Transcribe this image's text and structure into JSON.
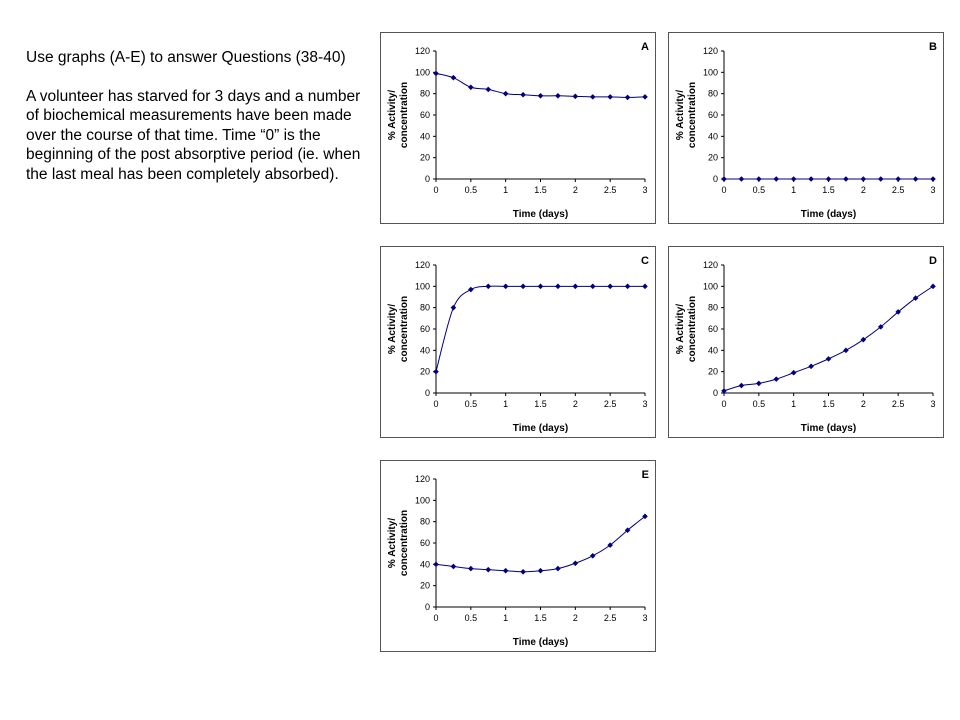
{
  "intro": {
    "heading": "Use graphs (A-E) to answer Questions (38-40)",
    "body": "A volunteer has starved for 3 days and a number of biochemical measurements have been made over the course of that time. Time “0” is the beginning of the post absorptive period (ie. when the last meal has been completely absorbed)."
  },
  "chart_data": [
    {
      "type": "line",
      "title": "A",
      "xlabel": "Time (days)",
      "ylabel": [
        "% Activity/",
        "concentration"
      ],
      "xlim": [
        0,
        3
      ],
      "ylim": [
        0,
        120
      ],
      "xticks": [
        "0",
        "0.5",
        "1",
        "1.5",
        "2",
        "2.5",
        "3"
      ],
      "yticks": [
        "0",
        "20",
        "40",
        "60",
        "80",
        "100",
        "120"
      ],
      "grid": false,
      "color": "#000080",
      "x": [
        0,
        0.25,
        0.5,
        0.75,
        1,
        1.25,
        1.5,
        1.75,
        2,
        2.25,
        2.5,
        2.75,
        3
      ],
      "y": [
        99,
        95,
        86,
        84,
        80,
        79,
        78,
        78,
        77.5,
        77,
        77,
        76.5,
        77
      ]
    },
    {
      "type": "line",
      "title": "B",
      "xlabel": "Time (days)",
      "ylabel": [
        "% Activity/",
        "concentration"
      ],
      "xlim": [
        0,
        3
      ],
      "ylim": [
        0,
        120
      ],
      "xticks": [
        "0",
        "0.5",
        "1",
        "1.5",
        "2",
        "2.5",
        "3"
      ],
      "yticks": [
        "0",
        "20",
        "40",
        "60",
        "80",
        "100",
        "120"
      ],
      "grid": false,
      "color": "#000080",
      "x": [
        0,
        0.25,
        0.5,
        0.75,
        1,
        1.25,
        1.5,
        1.75,
        2,
        2.25,
        2.5,
        2.75,
        3
      ],
      "y": [
        0,
        0,
        0,
        0,
        0,
        0,
        0,
        0,
        0,
        0,
        0,
        0,
        0
      ]
    },
    {
      "type": "line",
      "title": "C",
      "xlabel": "Time (days)",
      "ylabel": [
        "% Activity/",
        "concentration"
      ],
      "xlim": [
        0,
        3
      ],
      "ylim": [
        0,
        120
      ],
      "xticks": [
        "0",
        "0.5",
        "1",
        "1.5",
        "2",
        "2.5",
        "3"
      ],
      "yticks": [
        "0",
        "20",
        "40",
        "60",
        "80",
        "100",
        "120"
      ],
      "grid": false,
      "color": "#000080",
      "x": [
        0,
        0.25,
        0.5,
        0.75,
        1,
        1.25,
        1.5,
        1.75,
        2,
        2.25,
        2.5,
        2.75,
        3
      ],
      "y": [
        20,
        80,
        97,
        100,
        100,
        100,
        100,
        100,
        100,
        100,
        100,
        100,
        100
      ]
    },
    {
      "type": "line",
      "title": "D",
      "xlabel": "Time (days)",
      "ylabel": [
        "% Activity/",
        "concentration"
      ],
      "xlim": [
        0,
        3
      ],
      "ylim": [
        0,
        120
      ],
      "xticks": [
        "0",
        "0.5",
        "1",
        "1.5",
        "2",
        "2.5",
        "3"
      ],
      "yticks": [
        "0",
        "20",
        "40",
        "60",
        "80",
        "100",
        "120"
      ],
      "grid": false,
      "color": "#000080",
      "x": [
        0,
        0.25,
        0.5,
        0.75,
        1,
        1.25,
        1.5,
        1.75,
        2,
        2.25,
        2.5,
        2.75,
        3
      ],
      "y": [
        2,
        7,
        9,
        13,
        19,
        25,
        32,
        40,
        50,
        62,
        76,
        89,
        100
      ]
    },
    {
      "type": "line",
      "title": "E",
      "xlabel": "Time (days)",
      "ylabel": [
        "% Activity/",
        "concentration"
      ],
      "xlim": [
        0,
        3
      ],
      "ylim": [
        0,
        120
      ],
      "xticks": [
        "0",
        "0.5",
        "1",
        "1.5",
        "2",
        "2.5",
        "3"
      ],
      "yticks": [
        "0",
        "20",
        "40",
        "60",
        "80",
        "100",
        "120"
      ],
      "grid": false,
      "color": "#000080",
      "x": [
        0,
        0.25,
        0.5,
        0.75,
        1,
        1.25,
        1.5,
        1.75,
        2,
        2.25,
        2.5,
        2.75,
        3
      ],
      "y": [
        40,
        38,
        36,
        35,
        34,
        33,
        34,
        36,
        41,
        48,
        58,
        72,
        85
      ]
    }
  ]
}
